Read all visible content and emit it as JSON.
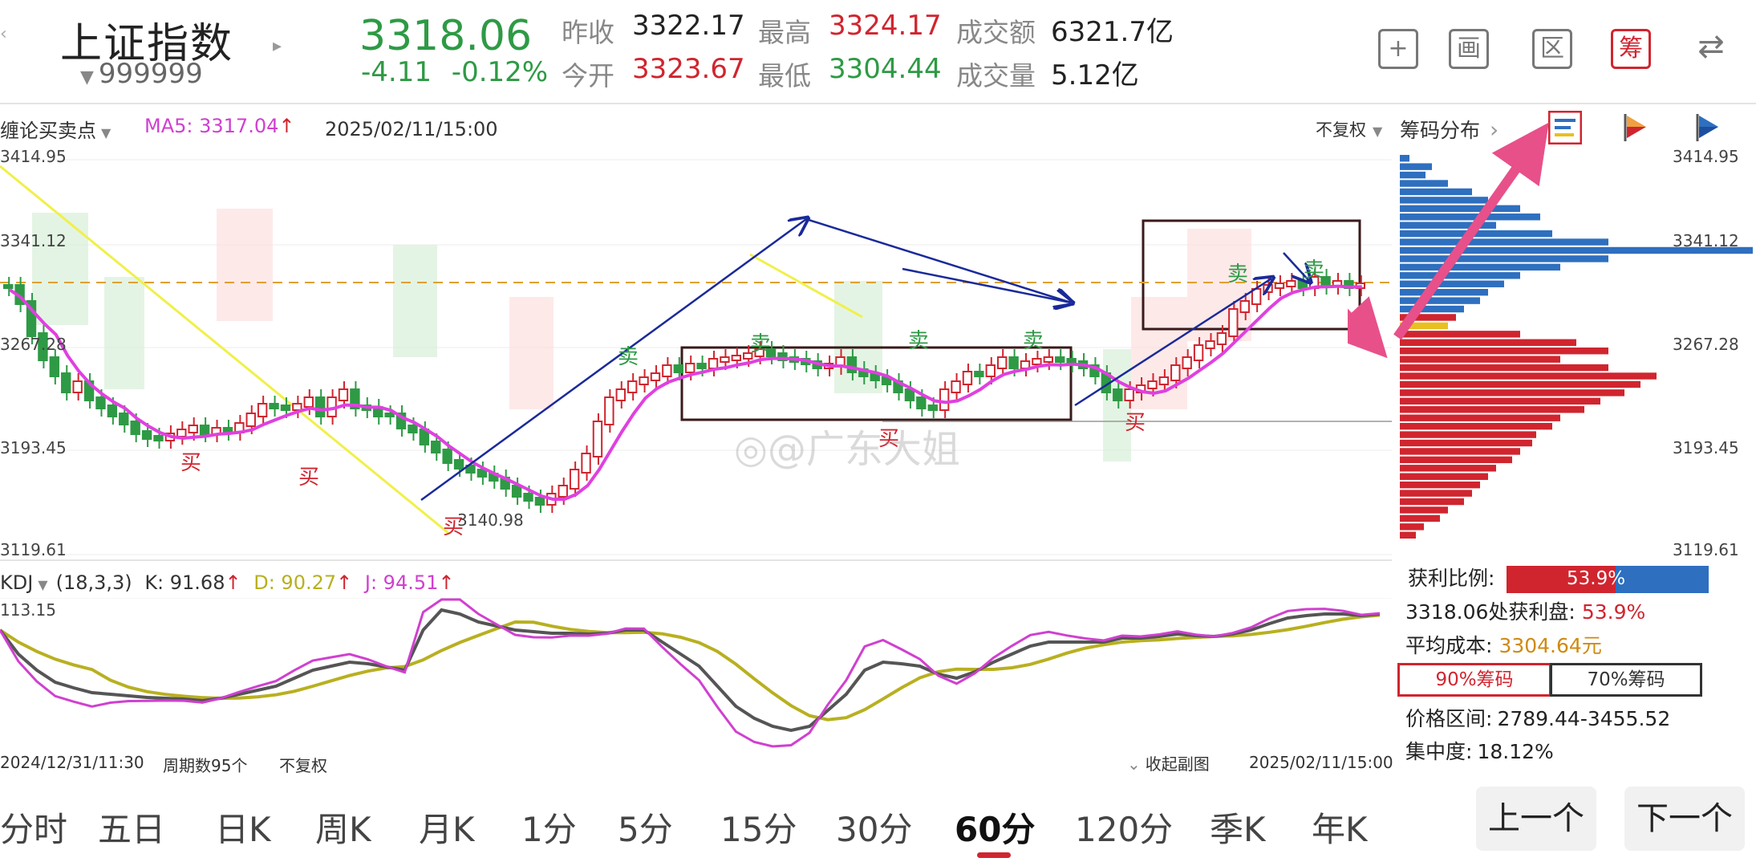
{
  "header": {
    "index_name": "上证指数",
    "code": "999999",
    "price": "3318.06",
    "change": "-4.11",
    "change_pct": "-0.12%",
    "quote": [
      {
        "label": "昨收",
        "value": "3322.17",
        "tone": "dark"
      },
      {
        "label": "最高",
        "value": "3324.17",
        "tone": "red"
      },
      {
        "label": "成交额",
        "value": "6321.7亿",
        "tone": "dark"
      },
      {
        "label": "今开",
        "value": "3323.67",
        "tone": "red"
      },
      {
        "label": "最低",
        "value": "3304.44",
        "tone": "green"
      },
      {
        "label": "成交量",
        "value": "5.12亿",
        "tone": "dark"
      }
    ],
    "tools": [
      {
        "name": "add",
        "glyph": "+"
      },
      {
        "name": "draw",
        "glyph": "画"
      },
      {
        "name": "range",
        "glyph": "区"
      },
      {
        "name": "chips",
        "glyph": "筹"
      },
      {
        "name": "switch",
        "glyph": "⇄"
      }
    ]
  },
  "chart_toolbar": {
    "indicator": "缠论买卖点",
    "ma5": "MA5: 3317.04",
    "datetime": "2025/02/11/15:00",
    "adjust": "不复权",
    "panel": "筹码分布"
  },
  "main_chart": {
    "price_labels": [
      "3414.95",
      "3341.12",
      "3267.28",
      "3193.45",
      "3119.61"
    ],
    "low_label": "3140.98",
    "buy_label": "买",
    "sell_label": "卖",
    "watermark": "@广东大姐"
  },
  "kdj": {
    "name": "KDJ",
    "params": "(18,3,3)",
    "k": "K: 91.68",
    "d": "D: 90.27",
    "j": "J: 94.51",
    "top_label": "113.15",
    "footer_start": "2024/12/31/11:30",
    "footer_periods": "周期数95个",
    "footer_adjust": "不复权",
    "collapse": "收起副图",
    "footer_end": "2025/02/11/15:00",
    "colors": {
      "k": "#555555",
      "d": "#b8b020",
      "j": "#d040d0"
    }
  },
  "chip_panel": {
    "price_labels": [
      "3414.95",
      "3341.12",
      "3267.28",
      "3193.45",
      "3119.61"
    ],
    "profit_ratio_label": "获利比例:",
    "profit_ratio_value": "53.9%",
    "profit_ratio": 0.539,
    "profit_at_label": "3318.06处获利盘:",
    "profit_at_value": "53.9%",
    "avg_cost_label": "平均成本:",
    "avg_cost_value": "3304.64元",
    "tab_90": "90%筹码",
    "tab_70": "70%筹码",
    "range_label": "价格区间:",
    "range_value": "2789.44-3455.52",
    "concentration_label": "集中度:",
    "concentration_value": "18.12%",
    "colors": {
      "profit": "#d0252f",
      "loss": "#2e6fbf",
      "avg": "#e8c020"
    }
  },
  "period_tabs": [
    "分时",
    "五日",
    "日K",
    "周K",
    "月K",
    "1分",
    "5分",
    "15分",
    "30分",
    "60分",
    "120分",
    "季K",
    "年K"
  ],
  "active_tab": "60分",
  "nav": {
    "prev": "上一个",
    "next": "下一个"
  }
}
